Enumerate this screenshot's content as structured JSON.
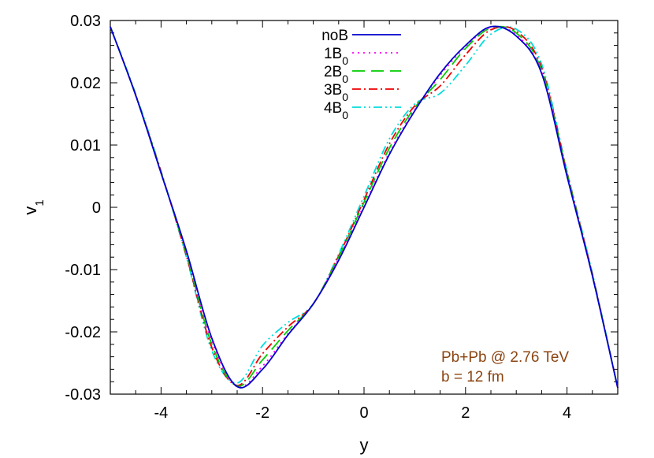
{
  "chart_data": {
    "type": "line",
    "xlabel": "y",
    "ylabel": {
      "main": "v",
      "sub": "1"
    },
    "xlim": [
      -5,
      5
    ],
    "ylim": [
      -0.03,
      0.03
    ],
    "xticks": [
      -4,
      -2,
      0,
      2,
      4
    ],
    "xtick_labels": [
      "-4",
      "-2",
      "0",
      "2",
      "4"
    ],
    "yticks": [
      -0.03,
      -0.02,
      -0.01,
      0,
      0.01,
      0.02,
      0.03
    ],
    "ytick_labels": [
      "-0.03",
      "-0.02",
      "-0.01",
      "0",
      "0.01",
      "0.02",
      "0.03"
    ],
    "grid": false,
    "legend_position": "top-center",
    "annotations": {
      "line1": "Pb+Pb @ 2.76 TeV",
      "line2": "b = 12 fm",
      "color": "#8B4513"
    },
    "series": [
      {
        "name": "noB",
        "name_sub": "",
        "color": "#0000cc",
        "dash": "",
        "x": [
          -5,
          -4.5,
          -4,
          -3.5,
          -3,
          -2.5,
          -2,
          -1.5,
          -1,
          -0.5,
          0,
          0.5,
          1,
          1.5,
          2,
          2.5,
          3,
          3.5,
          4,
          4.5,
          5
        ],
        "y": [
          0.029,
          0.018,
          0.0055,
          -0.007,
          -0.021,
          -0.0288,
          -0.026,
          -0.0205,
          -0.0155,
          -0.0085,
          0.0,
          0.0085,
          0.0155,
          0.0215,
          0.026,
          0.029,
          0.0275,
          0.0215,
          0.005,
          -0.011,
          -0.029
        ]
      },
      {
        "name": "1B",
        "name_sub": "0",
        "color": "#ff00ff",
        "dash": "2,5",
        "x": [
          -5,
          -4.5,
          -4,
          -3.5,
          -3,
          -2.5,
          -2,
          -1.5,
          -1,
          -0.5,
          0,
          0.5,
          1,
          1.5,
          2,
          2.5,
          3,
          3.5,
          4,
          4.5,
          5
        ],
        "y": [
          0.029,
          0.018,
          0.0055,
          -0.0072,
          -0.0215,
          -0.0288,
          -0.0255,
          -0.0203,
          -0.0155,
          -0.0082,
          0.0003,
          0.0088,
          0.0157,
          0.0212,
          0.0258,
          0.0289,
          0.0277,
          0.0217,
          0.0052,
          -0.011,
          -0.029
        ]
      },
      {
        "name": "2B",
        "name_sub": "0",
        "color": "#00cc00",
        "dash": "16,8",
        "x": [
          -5,
          -4.5,
          -4,
          -3.5,
          -3,
          -2.5,
          -2,
          -1.5,
          -1,
          -0.5,
          0,
          0.5,
          1,
          1.5,
          2,
          2.5,
          3,
          3.5,
          4,
          4.5,
          5
        ],
        "y": [
          0.029,
          0.018,
          0.0056,
          -0.0075,
          -0.022,
          -0.0287,
          -0.0245,
          -0.0198,
          -0.0155,
          -0.008,
          0.0008,
          0.0095,
          0.016,
          0.0205,
          0.0255,
          0.0288,
          0.028,
          0.022,
          0.0054,
          -0.011,
          -0.029
        ]
      },
      {
        "name": "3B",
        "name_sub": "0",
        "color": "#ee0000",
        "dash": "11,4,2,4",
        "x": [
          -5,
          -4.5,
          -4,
          -3.5,
          -3,
          -2.5,
          -2,
          -1.5,
          -1,
          -0.5,
          0,
          0.5,
          1,
          1.5,
          2,
          2.5,
          3,
          3.5,
          4,
          4.5,
          5
        ],
        "y": [
          0.029,
          0.018,
          0.0057,
          -0.0078,
          -0.0225,
          -0.0286,
          -0.0235,
          -0.0192,
          -0.0155,
          -0.0078,
          0.0012,
          0.0102,
          0.0163,
          0.0195,
          0.0245,
          0.0285,
          0.0283,
          0.0224,
          0.0056,
          -0.0108,
          -0.029
        ]
      },
      {
        "name": "4B",
        "name_sub": "0",
        "color": "#00dddd",
        "dash": "11,4,2,4,2,4",
        "x": [
          -5,
          -4.5,
          -4,
          -3.5,
          -3,
          -2.5,
          -2,
          -1.5,
          -1,
          -0.5,
          0,
          0.5,
          1,
          1.5,
          2,
          2.5,
          3,
          3.5,
          4,
          4.5,
          5
        ],
        "y": [
          0.029,
          0.0182,
          0.0058,
          -0.008,
          -0.023,
          -0.0282,
          -0.0222,
          -0.0185,
          -0.0155,
          -0.0075,
          0.0018,
          0.011,
          0.0166,
          0.0183,
          0.0228,
          0.0278,
          0.0286,
          0.023,
          0.0058,
          -0.0106,
          -0.029
        ]
      }
    ]
  }
}
